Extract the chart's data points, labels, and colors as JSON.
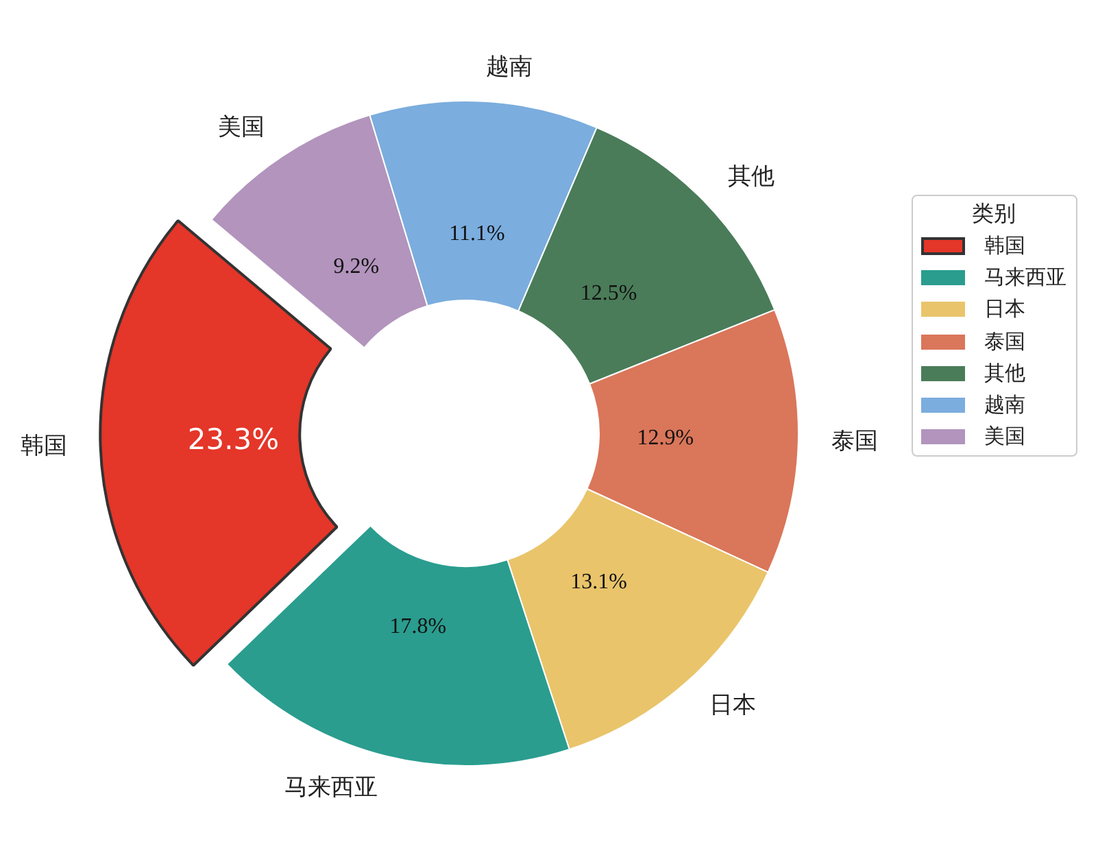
{
  "chart_data": {
    "type": "donut",
    "legend_title": "类别",
    "categories": [
      "韩国",
      "马来西亚",
      "日本",
      "泰国",
      "其他",
      "越南",
      "美国"
    ],
    "values": [
      23.3,
      17.8,
      13.1,
      12.9,
      12.5,
      11.1,
      9.2
    ],
    "colors": [
      "#e43629",
      "#2a9d8f",
      "#e9c46a",
      "#da765a",
      "#4a7c59",
      "#7badde",
      "#b294bd"
    ],
    "value_labels": [
      "23.3%",
      "17.8%",
      "13.1%",
      "12.9%",
      "12.5%",
      "11.1%",
      "9.2%"
    ],
    "legend": "right"
  }
}
